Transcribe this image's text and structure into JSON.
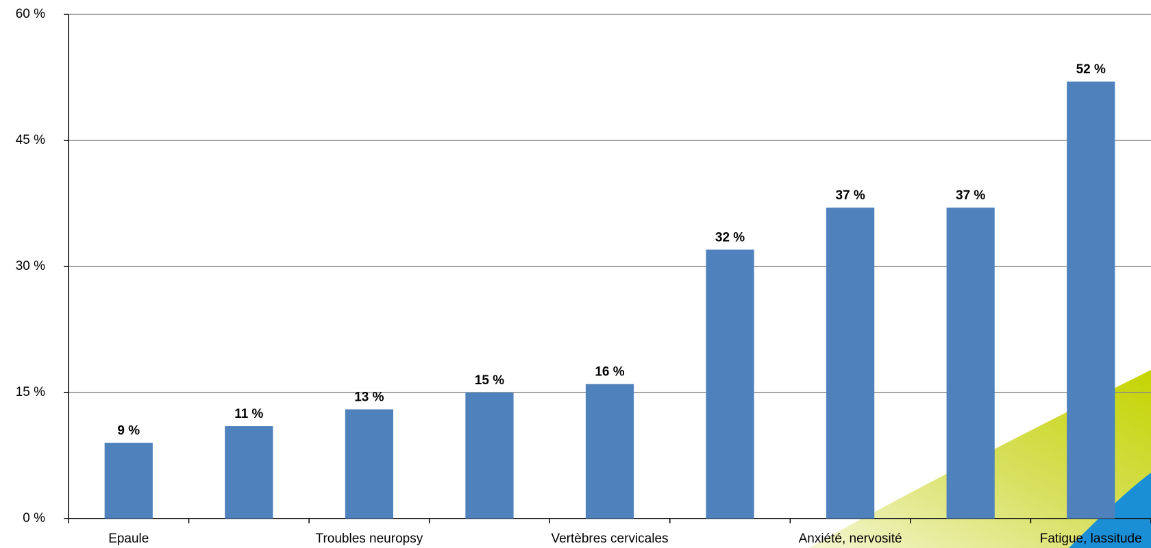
{
  "chart_data": {
    "type": "bar",
    "categories": [
      "Epaule",
      null,
      "Troubles neuropsy",
      null,
      "Vertèbres cervicales",
      null,
      "Anxiété, nervosité",
      null,
      "Fatigue, lassitude"
    ],
    "values": [
      9,
      11,
      13,
      15,
      16,
      32,
      37,
      37,
      52
    ],
    "value_labels": [
      "9 %",
      "11 %",
      "13 %",
      "15 %",
      "16 %",
      "32 %",
      "37 %",
      "37 %",
      "52 %"
    ],
    "color": "#4f81bd",
    "ylim": [
      0,
      60
    ],
    "yticks": [
      {
        "value": 0,
        "label": "0 %"
      },
      {
        "value": 15,
        "label": "15 %"
      },
      {
        "value": 30,
        "label": "30 %"
      },
      {
        "value": 45,
        "label": "45 %"
      },
      {
        "value": 60,
        "label": "60 %"
      }
    ],
    "grid": true
  }
}
